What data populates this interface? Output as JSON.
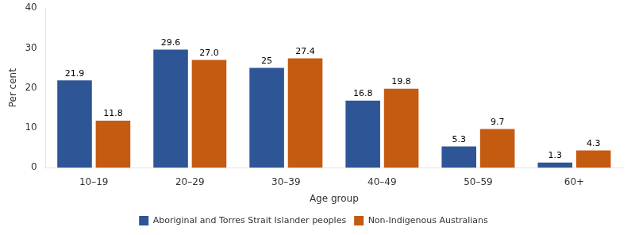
{
  "chart_data": {
    "type": "bar",
    "categories": [
      "10–19",
      "20–29",
      "30–39",
      "40–49",
      "50–59",
      "60+"
    ],
    "series": [
      {
        "name": "Aboriginal and Torres Strait Islander peoples",
        "color": "#2E5596",
        "values": [
          21.9,
          29.6,
          25.0,
          16.8,
          5.3,
          1.3
        ]
      },
      {
        "name": "Non-Indigenous Australians",
        "color": "#C55A11",
        "values": [
          11.8,
          27.0,
          27.4,
          19.8,
          9.7,
          4.3
        ],
        "value_labels": [
          "11.8",
          "27.0",
          "27.4",
          "19.8",
          "9.7",
          "4.3"
        ]
      }
    ],
    "xlabel": "Age group",
    "ylabel": "Per cent",
    "ylim": [
      0,
      40
    ],
    "yticks": [
      0,
      10,
      20,
      30,
      40
    ],
    "grid": false,
    "legend": "bottom",
    "data_labels": true
  }
}
